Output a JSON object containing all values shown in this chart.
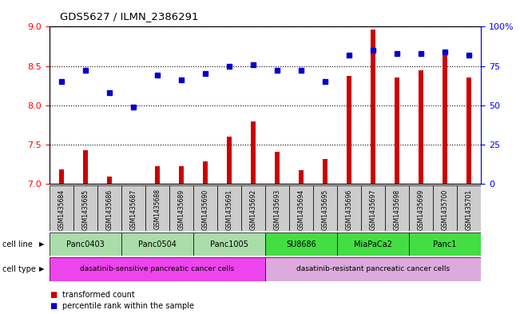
{
  "title": "GDS5627 / ILMN_2386291",
  "samples": [
    "GSM1435684",
    "GSM1435685",
    "GSM1435686",
    "GSM1435687",
    "GSM1435688",
    "GSM1435689",
    "GSM1435690",
    "GSM1435691",
    "GSM1435692",
    "GSM1435693",
    "GSM1435694",
    "GSM1435695",
    "GSM1435696",
    "GSM1435697",
    "GSM1435698",
    "GSM1435699",
    "GSM1435700",
    "GSM1435701"
  ],
  "transformed_count": [
    7.18,
    7.43,
    7.09,
    7.0,
    7.22,
    7.22,
    7.28,
    7.6,
    7.79,
    7.41,
    7.17,
    7.31,
    8.37,
    8.96,
    8.35,
    8.44,
    8.7,
    8.35
  ],
  "percentile_rank": [
    65,
    72,
    58,
    49,
    69,
    66,
    70,
    75,
    76,
    72,
    72,
    65,
    82,
    85,
    83,
    83,
    84,
    82
  ],
  "bar_color": "#cc0000",
  "dot_color": "#0000cc",
  "ylim_left": [
    7,
    9
  ],
  "ylim_right": [
    0,
    100
  ],
  "yticks_left": [
    7,
    7.5,
    8,
    8.5,
    9
  ],
  "yticks_right": [
    0,
    25,
    50,
    75,
    100
  ],
  "cell_lines": [
    {
      "label": "Panc0403",
      "start": 0,
      "end": 3,
      "color": "#aaddaa"
    },
    {
      "label": "Panc0504",
      "start": 3,
      "end": 6,
      "color": "#aaddaa"
    },
    {
      "label": "Panc1005",
      "start": 6,
      "end": 9,
      "color": "#aaddaa"
    },
    {
      "label": "SU8686",
      "start": 9,
      "end": 12,
      "color": "#44dd44"
    },
    {
      "label": "MiaPaCa2",
      "start": 12,
      "end": 15,
      "color": "#44dd44"
    },
    {
      "label": "Panc1",
      "start": 15,
      "end": 18,
      "color": "#44dd44"
    }
  ],
  "cell_types": [
    {
      "label": "dasatinib-sensitive pancreatic cancer cells",
      "start": 0,
      "end": 9,
      "color": "#ee44ee"
    },
    {
      "label": "dasatinib-resistant pancreatic cancer cells",
      "start": 9,
      "end": 18,
      "color": "#ddaadd"
    }
  ],
  "legend_items": [
    {
      "color": "#cc0000",
      "label": "transformed count"
    },
    {
      "color": "#0000cc",
      "label": "percentile rank within the sample"
    }
  ],
  "bar_width": 0.18
}
